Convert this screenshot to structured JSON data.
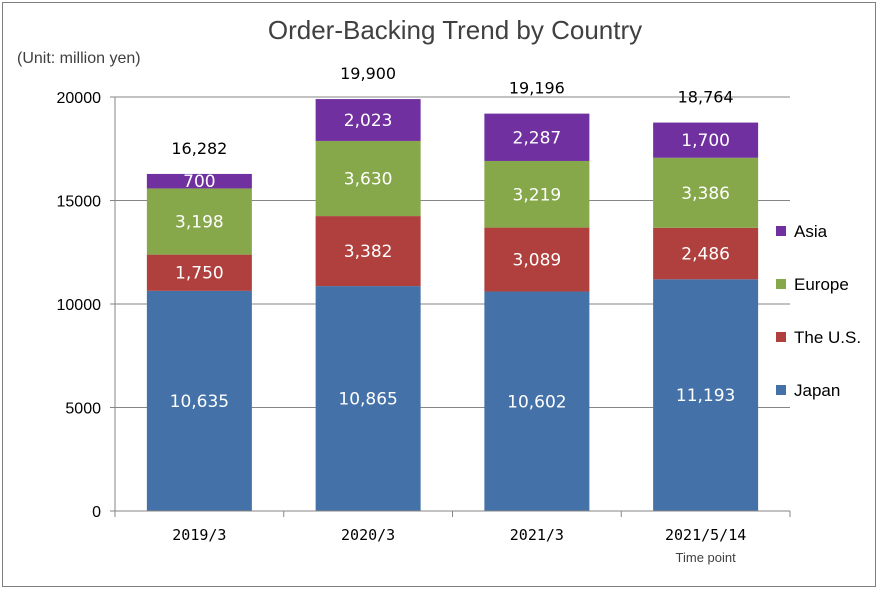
{
  "chart_data": {
    "type": "bar",
    "stacked": true,
    "title": "Order-Backing Trend by Country",
    "unit_label": "(Unit: million yen)",
    "categories": [
      "2019/3",
      "2020/3",
      "2021/3",
      "2021/5/14"
    ],
    "category_sublabels": [
      "",
      "",
      "",
      "Time point"
    ],
    "series": [
      {
        "name": "Japan",
        "color": "#4472a8",
        "values": [
          10635,
          10865,
          10602,
          11193
        ],
        "labels": [
          "10,635",
          "10,865",
          "10,602",
          "11,193"
        ]
      },
      {
        "name": "The U.S.",
        "color": "#b0403d",
        "values": [
          1750,
          3382,
          3089,
          2486
        ],
        "labels": [
          "1,750",
          "3,382",
          "3,089",
          "2,486"
        ]
      },
      {
        "name": "Europe",
        "color": "#86a84a",
        "values": [
          3198,
          3630,
          3219,
          3386
        ],
        "labels": [
          "3,198",
          "3,630",
          "3,219",
          "3,386"
        ]
      },
      {
        "name": "Asia",
        "color": "#7030a0",
        "values": [
          700,
          2023,
          2287,
          1700
        ],
        "labels": [
          "700",
          "2,023",
          "2,287",
          "1,700"
        ]
      }
    ],
    "totals": [
      "16,282",
      "19,900",
      "19,196",
      "18,764"
    ],
    "ylim": [
      0,
      20000
    ],
    "yticks": [
      "0",
      "5000",
      "10000",
      "15000",
      "20000"
    ],
    "grid": true,
    "legend_position": "right"
  }
}
